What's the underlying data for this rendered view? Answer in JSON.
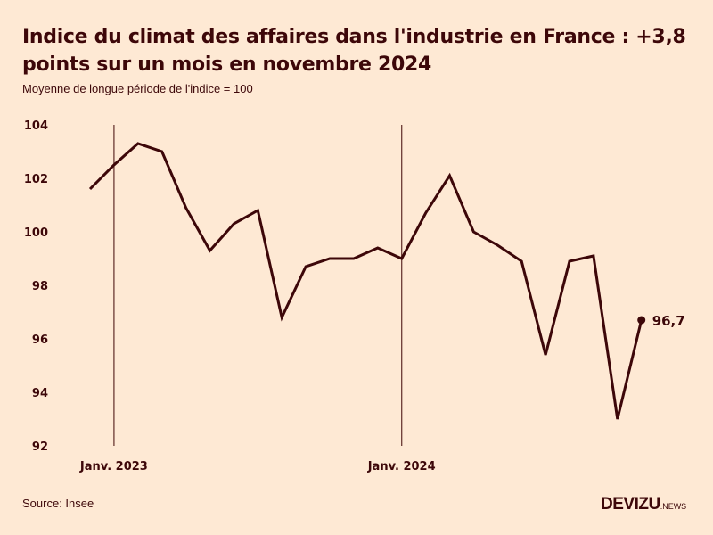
{
  "header": {
    "title": "Indice du climat des affaires dans l'industrie en France : +3,8 points sur un mois en novembre 2024",
    "subtitle": "Moyenne de longue période de l'indice = 100"
  },
  "footer": {
    "source": "Source: Insee",
    "logo_brand": "DEVIZU",
    "logo_suffix": ".NEWS"
  },
  "colors": {
    "background": "#FEE9D4",
    "line": "#3D0709",
    "reference_line": "#6B3A35",
    "text": "#3D0709"
  },
  "chart_data": {
    "type": "line",
    "title": "Indice du climat des affaires dans l'industrie en France : +3,8 points sur un mois en novembre 2024",
    "subtitle": "Moyenne de longue période de l'indice = 100",
    "xlabel": "",
    "ylabel": "",
    "x": [
      "2022-12",
      "2023-01",
      "2023-02",
      "2023-03",
      "2023-04",
      "2023-05",
      "2023-06",
      "2023-07",
      "2023-08",
      "2023-09",
      "2023-10",
      "2023-11",
      "2023-12",
      "2024-01",
      "2024-02",
      "2024-03",
      "2024-04",
      "2024-05",
      "2024-06",
      "2024-07",
      "2024-08",
      "2024-09",
      "2024-10",
      "2024-11"
    ],
    "series": [
      {
        "name": "Indice du climat des affaires dans l'industrie",
        "values": [
          101.6,
          102.5,
          103.3,
          103.0,
          100.9,
          99.3,
          100.3,
          100.8,
          96.8,
          98.7,
          99.0,
          99.0,
          99.4,
          99.0,
          100.7,
          102.1,
          100.0,
          99.5,
          98.9,
          95.4,
          98.9,
          99.1,
          93.0,
          96.7
        ]
      }
    ],
    "ylim": [
      92,
      104
    ],
    "yticks": [
      104,
      102,
      100,
      98,
      96,
      94,
      92
    ],
    "ytick_labels": [
      "104",
      "102",
      "100",
      "98",
      "96",
      "94",
      "92"
    ],
    "xticks": [
      {
        "x": "2023-01",
        "label": "Janv. 2023"
      },
      {
        "x": "2024-01",
        "label": "Janv. 2024"
      }
    ],
    "reference_lines": [
      "2023-01",
      "2024-01"
    ],
    "end_label": "96,7",
    "grid": false,
    "legend": "none"
  },
  "source": "Insee"
}
